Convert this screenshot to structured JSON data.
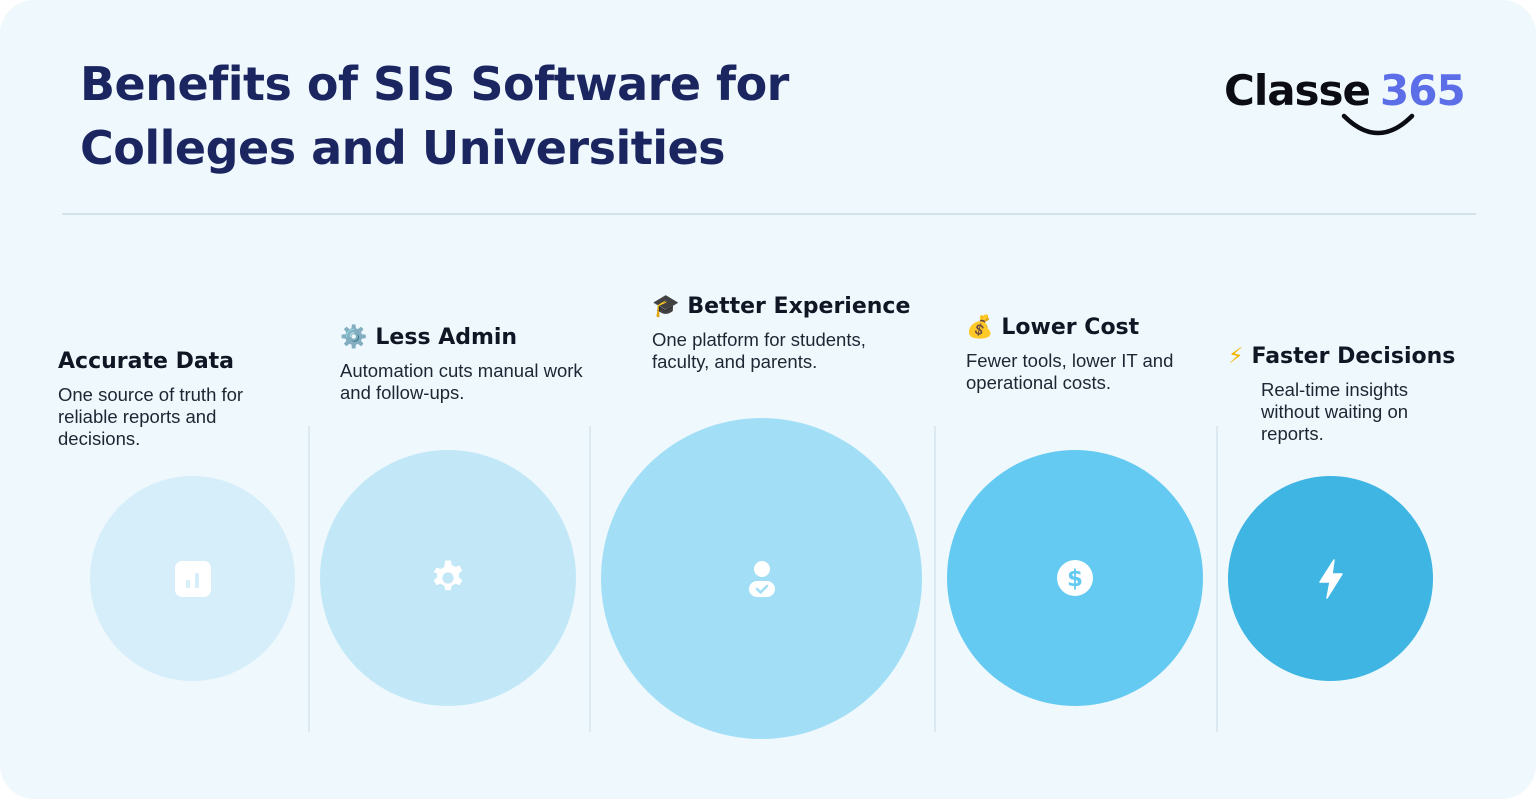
{
  "header": {
    "title_line1": "Benefits of SIS Software for",
    "title_line2": "Colleges and Universities"
  },
  "logo": {
    "word": "Classe",
    "number": "365"
  },
  "benefits": [
    {
      "title": "Accurate Data",
      "emoji": "",
      "description": "One source of truth for reliable reports and decisions.",
      "icon": "chart-icon",
      "circle_color": "#d5eef9"
    },
    {
      "title": "Less Admin",
      "emoji": "⚙️",
      "description": "Automation cuts manual work and follow-ups.",
      "icon": "gear-icon",
      "circle_color": "#c2e8f8"
    },
    {
      "title": "Better Experience",
      "emoji": "🎓",
      "description": "One platform for students, faculty, and parents.",
      "icon": "user-check-icon",
      "circle_color": "#a2dff6"
    },
    {
      "title": "Lower Cost",
      "emoji": "💰",
      "description": "Fewer tools, lower IT and operational costs.",
      "icon": "dollar-icon",
      "circle_color": "#64caf2"
    },
    {
      "title": "Faster Decisions",
      "emoji": "⚡",
      "description": "Real-time insights without waiting on reports.",
      "icon": "lightning-icon",
      "circle_color": "#3eb5e2"
    }
  ],
  "colors": {
    "background": "#eef8fd",
    "title": "#1b2560",
    "logo_accent": "#5b6ee8"
  }
}
